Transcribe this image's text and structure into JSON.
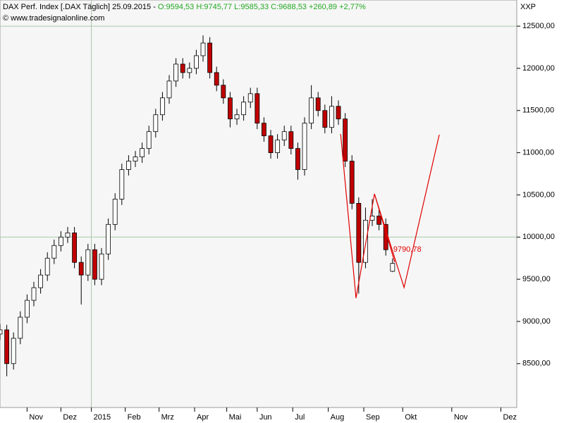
{
  "chart_data": {
    "type": "candlestick",
    "header": {
      "label": "DAX Perf. Index [.DAX  Täglich] 25.09.2015 -",
      "quote": "O:9594,53 H:9745,77 L:9585,33 C:9688,53 +260,89 +2,77%",
      "source": "© www.tradesignalonline.com"
    },
    "axis_title": "XXP",
    "xlim": [
      0,
      305.4
    ],
    "ylim": [
      7980,
      12810
    ],
    "yticks": [
      {
        "value": 8500,
        "label": "8500,00"
      },
      {
        "value": 9000,
        "label": "9000,00"
      },
      {
        "value": 9500,
        "label": "9500,00"
      },
      {
        "value": 10000,
        "label": "10000,00"
      },
      {
        "value": 10500,
        "label": "10500,00"
      },
      {
        "value": 11000,
        "label": "11000,00"
      },
      {
        "value": 11500,
        "label": "11500,00"
      },
      {
        "value": 12000,
        "label": "12000,00"
      },
      {
        "value": 12500,
        "label": "12500,00"
      }
    ],
    "xticks": [
      {
        "value": 16,
        "label": "Nov"
      },
      {
        "value": 36,
        "label": "Dez"
      },
      {
        "value": 54,
        "label": "2015"
      },
      {
        "value": 74,
        "label": "Feb"
      },
      {
        "value": 94,
        "label": "Mrz"
      },
      {
        "value": 115,
        "label": "Apr"
      },
      {
        "value": 134,
        "label": "Mai"
      },
      {
        "value": 152,
        "label": "Jun"
      },
      {
        "value": 173,
        "label": "Jul"
      },
      {
        "value": 194,
        "label": "Aug"
      },
      {
        "value": 215,
        "label": "Sep"
      },
      {
        "value": 238,
        "label": "Okt"
      },
      {
        "value": 267,
        "label": "Nov"
      },
      {
        "value": 296,
        "label": "Dez"
      }
    ],
    "hlines": [
      12500,
      10000
    ],
    "vlines": [
      54
    ],
    "series": [
      {
        "up_color": "#ffffff",
        "down_color": "#c00000",
        "x": [
          0,
          4,
          8,
          12,
          16,
          20,
          24,
          28,
          32,
          36,
          40,
          44,
          48,
          52,
          56,
          60,
          64,
          68,
          72,
          76,
          80,
          84,
          88,
          92,
          96,
          100,
          104,
          108,
          112,
          116,
          120,
          124,
          128,
          132,
          136,
          140,
          144,
          148,
          152,
          156,
          160,
          164,
          168,
          172,
          176,
          180,
          184,
          188,
          192,
          196,
          200,
          204,
          208,
          212,
          216,
          220,
          224,
          228,
          232
        ],
        "open": [
          8850,
          8900,
          8500,
          8800,
          9050,
          9250,
          9400,
          9550,
          9750,
          9900,
          10000,
          10050,
          9700,
          9550,
          9850,
          9500,
          9800,
          10150,
          10450,
          10800,
          10900,
          10950,
          11050,
          11250,
          11450,
          11650,
          11850,
          12050,
          11950,
          12000,
          12150,
          12300,
          11950,
          11800,
          11650,
          11400,
          11450,
          11600,
          11700,
          11350,
          11200,
          11000,
          11150,
          11250,
          11050,
          10800,
          11350,
          11650,
          11500,
          11300,
          11550,
          11400,
          10900,
          10400,
          9700,
          10200,
          10250,
          10150,
          9594.53
        ],
        "high": [
          8970,
          8960,
          8870,
          9120,
          9320,
          9470,
          9620,
          9820,
          9970,
          10070,
          10120,
          10120,
          9770,
          9920,
          9920,
          9870,
          10220,
          10520,
          10870,
          10970,
          11020,
          11120,
          11320,
          11520,
          11720,
          11920,
          12120,
          12120,
          12070,
          12220,
          12390,
          12370,
          12020,
          11870,
          11720,
          11520,
          11670,
          11770,
          11770,
          11420,
          11270,
          11220,
          11320,
          11320,
          11120,
          11420,
          11800,
          11720,
          11570,
          11670,
          11620,
          11470,
          10970,
          10470,
          10350,
          10450,
          10320,
          10220,
          9745.77
        ],
        "low": [
          8780,
          8350,
          8430,
          8730,
          8980,
          9180,
          9330,
          9480,
          9680,
          9830,
          9930,
          9630,
          9200,
          9480,
          9430,
          9430,
          9730,
          10080,
          10380,
          10730,
          10830,
          10880,
          10980,
          11180,
          11380,
          11580,
          11780,
          11880,
          11880,
          11930,
          12080,
          11880,
          11730,
          11580,
          11300,
          11330,
          11380,
          11530,
          11280,
          11130,
          10930,
          10930,
          11080,
          10980,
          10680,
          10730,
          11280,
          11430,
          11230,
          11230,
          11330,
          10830,
          10330,
          9330,
          9630,
          10130,
          10080,
          9780,
          9585.33
        ],
        "close": [
          8900,
          8500,
          8800,
          9050,
          9250,
          9400,
          9550,
          9750,
          9900,
          10000,
          10050,
          9700,
          9550,
          9850,
          9500,
          9800,
          10150,
          10450,
          10800,
          10900,
          10950,
          11050,
          11250,
          11450,
          11650,
          11850,
          12050,
          11950,
          12000,
          12150,
          12300,
          11950,
          11800,
          11650,
          11400,
          11450,
          11600,
          11700,
          11350,
          11200,
          11000,
          11150,
          11250,
          11050,
          10800,
          11350,
          11650,
          11500,
          11300,
          11550,
          11400,
          10900,
          10400,
          9700,
          10200,
          10250,
          10150,
          9850,
          9688.53
        ]
      }
    ],
    "drawings": [
      {
        "color": "#e00000",
        "x": [
          201.3,
          210.4,
          221.3,
          238.8,
          259.6
        ],
        "y": [
          11222,
          9277,
          10512,
          9402,
          11214
        ]
      },
      {
        "color": "#e00000",
        "x": [
          221.3,
          233.3
        ],
        "y": [
          10512,
          9703
        ]
      }
    ],
    "annotation": {
      "value": 9790.78,
      "label": "9790,78",
      "color": "#e00000"
    }
  }
}
